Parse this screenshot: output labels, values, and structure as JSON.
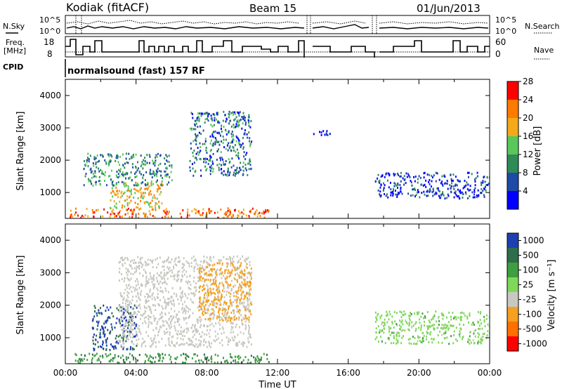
{
  "header": {
    "title": "Kodiak (fitACF)",
    "beam": "Beam 15",
    "date": "01/Jun/2013"
  },
  "status_panel": {
    "nsky_label": "N.Sky",
    "nsearch_label": "N.Search",
    "freq_label_line1": "Freq.",
    "freq_label_line2": "[MHz]",
    "nave_label": "Nave",
    "cpid_label": "CPID",
    "noise_ticks": [
      "10^5",
      "10^0"
    ],
    "freq_ticks": [
      "18",
      "8"
    ],
    "nave_ticks": [
      "60",
      "0"
    ],
    "cpid_text": "normalsound (fast) 157 RF"
  },
  "chart_data": [
    {
      "type": "heatmap",
      "panel": "power",
      "ylabel": "Slant Range [km]",
      "xlabel": "",
      "ylim": [
        200,
        4500
      ],
      "xlim": [
        "00:00",
        "24:00"
      ],
      "yticks": [
        "1000",
        "2000",
        "3000",
        "4000"
      ],
      "colorbar_label": "Power [dB]",
      "colorbar_ticks": [
        "4",
        "8",
        "12",
        "16",
        "20",
        "24",
        "28"
      ],
      "colorbar_colors": [
        "#0000ff",
        "#1e4aa8",
        "#2e8b57",
        "#58c85a",
        "#f5a91a",
        "#ff7a00",
        "#ff0000"
      ],
      "features": [
        {
          "t_start": 0.2,
          "t_end": 11.5,
          "range_min": 200,
          "range_max": 500,
          "level_db": 24
        },
        {
          "t_start": 2.5,
          "t_end": 5.5,
          "range_min": 500,
          "range_max": 1300,
          "level_db": 20
        },
        {
          "t_start": 1.0,
          "t_end": 6.0,
          "range_min": 1200,
          "range_max": 2200,
          "level_db": 12
        },
        {
          "t_start": 7.0,
          "t_end": 10.5,
          "range_min": 1500,
          "range_max": 3500,
          "level_db": 10
        },
        {
          "t_start": 14.0,
          "t_end": 15.0,
          "range_min": 2700,
          "range_max": 2900,
          "level_db": 4
        },
        {
          "t_start": 17.5,
          "t_end": 24.0,
          "range_min": 800,
          "range_max": 1600,
          "level_db": 6
        }
      ]
    },
    {
      "type": "heatmap",
      "panel": "velocity",
      "ylabel": "Slant Range [km]",
      "xlabel": "Time UT",
      "ylim": [
        200,
        4500
      ],
      "xlim": [
        "00:00",
        "24:00"
      ],
      "yticks": [
        "1000",
        "2000",
        "3000",
        "4000"
      ],
      "xticks": [
        "00:00",
        "04:00",
        "08:00",
        "12:00",
        "16:00",
        "20:00",
        "00:00"
      ],
      "colorbar_label": "Velocity [m s⁻¹]",
      "colorbar_ticks": [
        "1000",
        "500",
        "100",
        "25",
        "-25",
        "-100",
        "-500",
        "-1000"
      ],
      "colorbar_colors": [
        "#1e3fb0",
        "#2e6e4a",
        "#3f9e3f",
        "#7fd85a",
        "#c8c8c0",
        "#f5a020",
        "#ff7000",
        "#ff0000"
      ],
      "features": [
        {
          "t_start": 1.5,
          "t_end": 4.0,
          "range_min": 600,
          "range_max": 2000,
          "velocity": 600
        },
        {
          "t_start": 0.5,
          "t_end": 11.5,
          "range_min": 200,
          "range_max": 500,
          "velocity": 80
        },
        {
          "t_start": 3.0,
          "t_end": 10.5,
          "range_min": 700,
          "range_max": 3500,
          "velocity": -60
        },
        {
          "t_start": 7.5,
          "t_end": 10.5,
          "range_min": 1500,
          "range_max": 3300,
          "velocity": -200
        },
        {
          "t_start": 17.5,
          "t_end": 24.0,
          "range_min": 800,
          "range_max": 1800,
          "velocity": 0
        }
      ]
    }
  ]
}
